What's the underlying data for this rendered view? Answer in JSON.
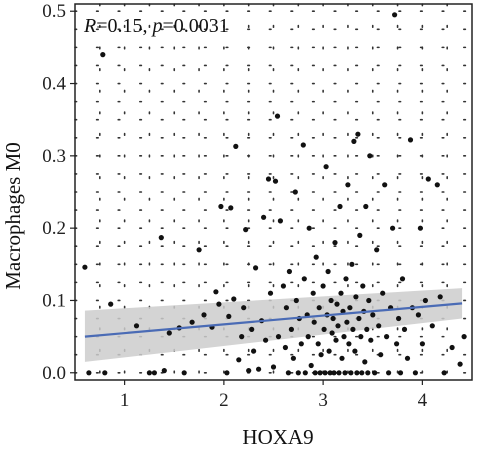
{
  "chart_data": {
    "type": "scatter",
    "xlabel": "HOXA9",
    "ylabel": "Macrophages M0",
    "xlim": [
      0.5,
      4.5
    ],
    "ylim": [
      -0.01,
      0.51
    ],
    "xticks": [
      1,
      2,
      3,
      4
    ],
    "yticks": [
      0.0,
      0.1,
      0.2,
      0.3,
      0.4,
      0.5
    ],
    "xtick_labels": [
      "1",
      "2",
      "3",
      "4"
    ],
    "ytick_labels": [
      "0.0",
      "0.1",
      "0.2",
      "0.3",
      "0.4",
      "0.5"
    ],
    "grid": "dotted",
    "annotation": {
      "r_label": "R",
      "r_value": "=0.15, ",
      "p_label": "p",
      "p_value": "=0.0031"
    },
    "regression": {
      "x": [
        0.6,
        4.4
      ],
      "y": [
        0.05,
        0.096
      ],
      "ci_lower": [
        0.015,
        0.075
      ],
      "ci_upper": [
        0.086,
        0.117
      ],
      "line_color": "#4a6bb5",
      "band_color": "#cccccc"
    },
    "point_color": "#111111",
    "points": [
      [
        0.6,
        0.146
      ],
      [
        0.78,
        0.44
      ],
      [
        0.64,
        0.0
      ],
      [
        0.8,
        0.0
      ],
      [
        0.86,
        0.095
      ],
      [
        1.12,
        0.065
      ],
      [
        1.25,
        0.0
      ],
      [
        1.3,
        0.0
      ],
      [
        1.37,
        0.187
      ],
      [
        1.4,
        0.003
      ],
      [
        1.45,
        0.055
      ],
      [
        1.55,
        0.062
      ],
      [
        1.6,
        0.0
      ],
      [
        1.68,
        0.07
      ],
      [
        1.75,
        0.17
      ],
      [
        1.8,
        0.08
      ],
      [
        1.88,
        0.063
      ],
      [
        1.92,
        0.112
      ],
      [
        1.95,
        0.095
      ],
      [
        1.97,
        0.23
      ],
      [
        2.03,
        0.0
      ],
      [
        2.05,
        0.078
      ],
      [
        2.07,
        0.228
      ],
      [
        2.1,
        0.102
      ],
      [
        2.12,
        0.313
      ],
      [
        2.15,
        0.018
      ],
      [
        2.18,
        0.05
      ],
      [
        2.2,
        0.09
      ],
      [
        2.22,
        0.198
      ],
      [
        2.25,
        0.003
      ],
      [
        2.28,
        0.06
      ],
      [
        2.3,
        0.03
      ],
      [
        2.32,
        0.145
      ],
      [
        2.35,
        0.005
      ],
      [
        2.38,
        0.072
      ],
      [
        2.4,
        0.215
      ],
      [
        2.42,
        0.045
      ],
      [
        2.45,
        0.268
      ],
      [
        2.47,
        0.11
      ],
      [
        2.5,
        0.008
      ],
      [
        2.52,
        0.265
      ],
      [
        2.54,
        0.355
      ],
      [
        2.55,
        0.05
      ],
      [
        2.57,
        0.21
      ],
      [
        2.6,
        0.12
      ],
      [
        2.62,
        0.035
      ],
      [
        2.63,
        0.09
      ],
      [
        2.65,
        0.0
      ],
      [
        2.66,
        0.14
      ],
      [
        2.68,
        0.06
      ],
      [
        2.7,
        0.02
      ],
      [
        2.72,
        0.25
      ],
      [
        2.73,
        0.1
      ],
      [
        2.75,
        0.0
      ],
      [
        2.76,
        0.075
      ],
      [
        2.78,
        0.04
      ],
      [
        2.8,
        0.315
      ],
      [
        2.81,
        0.13
      ],
      [
        2.82,
        0.0
      ],
      [
        2.84,
        0.08
      ],
      [
        2.85,
        0.05
      ],
      [
        2.86,
        0.2
      ],
      [
        2.88,
        0.01
      ],
      [
        2.9,
        0.11
      ],
      [
        2.91,
        0.07
      ],
      [
        2.92,
        0.0
      ],
      [
        2.93,
        0.16
      ],
      [
        2.95,
        0.04
      ],
      [
        2.96,
        0.09
      ],
      [
        2.97,
        0.0
      ],
      [
        2.98,
        0.025
      ],
      [
        3.0,
        0.12
      ],
      [
        3.01,
        0.06
      ],
      [
        3.02,
        0.0
      ],
      [
        3.03,
        0.285
      ],
      [
        3.04,
        0.08
      ],
      [
        3.05,
        0.14
      ],
      [
        3.06,
        0.03
      ],
      [
        3.07,
        0.0
      ],
      [
        3.08,
        0.1
      ],
      [
        3.09,
        0.055
      ],
      [
        3.1,
        0.075
      ],
      [
        3.11,
        0.0
      ],
      [
        3.12,
        0.18
      ],
      [
        3.13,
        0.045
      ],
      [
        3.14,
        0.095
      ],
      [
        3.15,
        0.065
      ],
      [
        3.16,
        0.0
      ],
      [
        3.17,
        0.23
      ],
      [
        3.18,
        0.11
      ],
      [
        3.19,
        0.02
      ],
      [
        3.2,
        0.085
      ],
      [
        3.21,
        0.05
      ],
      [
        3.22,
        0.0
      ],
      [
        3.23,
        0.13
      ],
      [
        3.24,
        0.07
      ],
      [
        3.25,
        0.26
      ],
      [
        3.26,
        0.04
      ],
      [
        3.27,
        0.09
      ],
      [
        3.28,
        0.0
      ],
      [
        3.29,
        0.15
      ],
      [
        3.3,
        0.06
      ],
      [
        3.31,
        0.32
      ],
      [
        3.32,
        0.03
      ],
      [
        3.33,
        0.105
      ],
      [
        3.34,
        0.0
      ],
      [
        3.35,
        0.33
      ],
      [
        3.36,
        0.075
      ],
      [
        3.37,
        0.19
      ],
      [
        3.38,
        0.05
      ],
      [
        3.39,
        0.0
      ],
      [
        3.4,
        0.12
      ],
      [
        3.41,
        0.085
      ],
      [
        3.42,
        0.015
      ],
      [
        3.43,
        0.23
      ],
      [
        3.44,
        0.06
      ],
      [
        3.45,
        0.0
      ],
      [
        3.46,
        0.1
      ],
      [
        3.47,
        0.3
      ],
      [
        3.48,
        0.045
      ],
      [
        3.5,
        0.08
      ],
      [
        3.52,
        0.0
      ],
      [
        3.54,
        0.17
      ],
      [
        3.56,
        0.065
      ],
      [
        3.58,
        0.025
      ],
      [
        3.6,
        0.11
      ],
      [
        3.62,
        0.26
      ],
      [
        3.64,
        0.05
      ],
      [
        3.66,
        0.0
      ],
      [
        3.68,
        0.09
      ],
      [
        3.7,
        0.2
      ],
      [
        3.72,
        0.495
      ],
      [
        3.74,
        0.04
      ],
      [
        3.76,
        0.075
      ],
      [
        3.78,
        0.0
      ],
      [
        3.8,
        0.13
      ],
      [
        3.82,
        0.06
      ],
      [
        3.85,
        0.02
      ],
      [
        3.88,
        0.322
      ],
      [
        3.9,
        0.09
      ],
      [
        3.93,
        0.0
      ],
      [
        3.96,
        0.08
      ],
      [
        3.98,
        0.2
      ],
      [
        4.0,
        0.04
      ],
      [
        4.03,
        0.1
      ],
      [
        4.06,
        0.268
      ],
      [
        4.1,
        0.065
      ],
      [
        4.15,
        0.26
      ],
      [
        4.18,
        0.105
      ],
      [
        4.22,
        0.0
      ],
      [
        4.3,
        0.035
      ],
      [
        4.38,
        0.012
      ],
      [
        4.42,
        0.05
      ]
    ]
  }
}
